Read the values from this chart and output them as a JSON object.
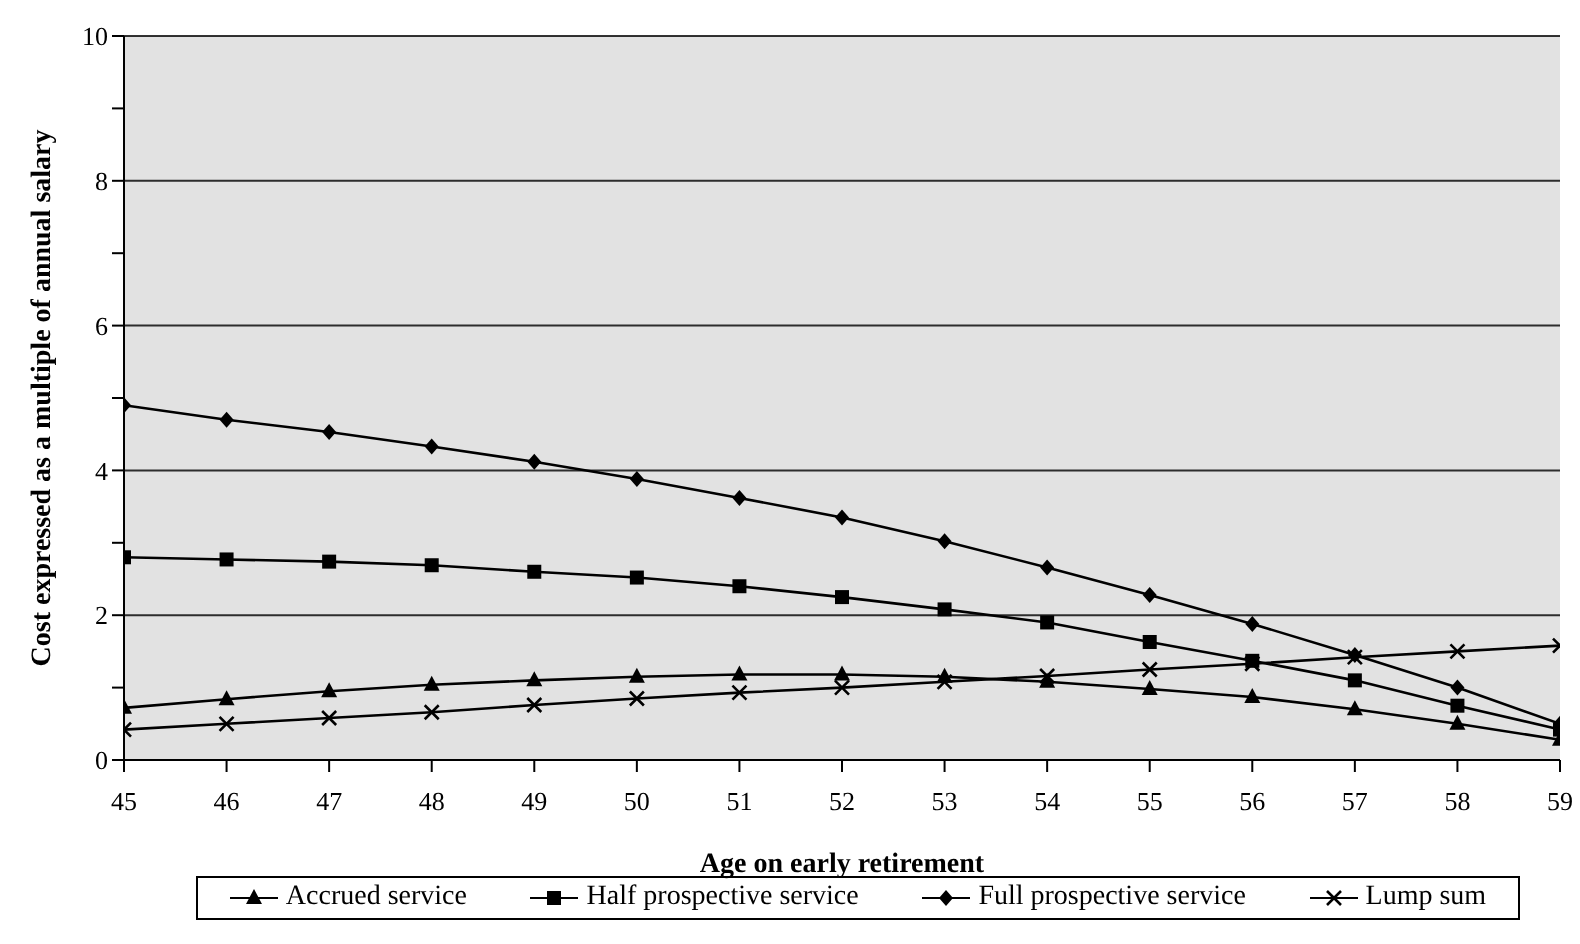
{
  "chart_data": {
    "type": "line",
    "xlabel": "Age on early retirement",
    "ylabel": "Cost expressed as a multiple of annual salary",
    "x": [
      45,
      46,
      47,
      48,
      49,
      50,
      51,
      52,
      53,
      54,
      55,
      56,
      57,
      58,
      59
    ],
    "xlim": [
      45,
      59
    ],
    "xticks": [
      45,
      46,
      47,
      48,
      49,
      50,
      51,
      52,
      53,
      54,
      55,
      56,
      57,
      58,
      59
    ],
    "ylim": [
      0,
      10
    ],
    "yticks": [
      0,
      {
        "value": 1,
        "label": null
      },
      2,
      {
        "value": 3,
        "label": null
      },
      4,
      {
        "value": 5,
        "label": null
      },
      6,
      {
        "value": 7,
        "label": null
      },
      8,
      {
        "value": 9,
        "label": null
      },
      10
    ],
    "grid": "y",
    "legend": "bottom",
    "line_style": "solid",
    "series": [
      {
        "name": "Accrued service",
        "color": "#000000",
        "marker": "triangle",
        "values": [
          0.72,
          0.84,
          0.95,
          1.04,
          1.1,
          1.15,
          1.18,
          1.18,
          1.15,
          1.08,
          0.98,
          0.87,
          0.7,
          0.5,
          0.28
        ]
      },
      {
        "name": "Half prospective service",
        "color": "#000000",
        "marker": "square",
        "values": [
          2.8,
          2.77,
          2.74,
          2.69,
          2.6,
          2.52,
          2.4,
          2.25,
          2.08,
          1.9,
          1.63,
          1.37,
          1.1,
          0.75,
          0.42
        ]
      },
      {
        "name": "Full prospective service",
        "color": "#000000",
        "marker": "diamond",
        "values": [
          4.9,
          4.7,
          4.53,
          4.33,
          4.12,
          3.88,
          3.62,
          3.35,
          3.02,
          2.66,
          2.28,
          1.88,
          1.45,
          1.0,
          0.5
        ]
      },
      {
        "name": "Lump sum",
        "color": "#000000",
        "marker": "cross",
        "values": [
          0.42,
          0.5,
          0.58,
          0.66,
          0.76,
          0.85,
          0.93,
          1.0,
          1.08,
          1.16,
          1.25,
          1.33,
          1.42,
          1.5,
          1.58
        ]
      }
    ]
  }
}
